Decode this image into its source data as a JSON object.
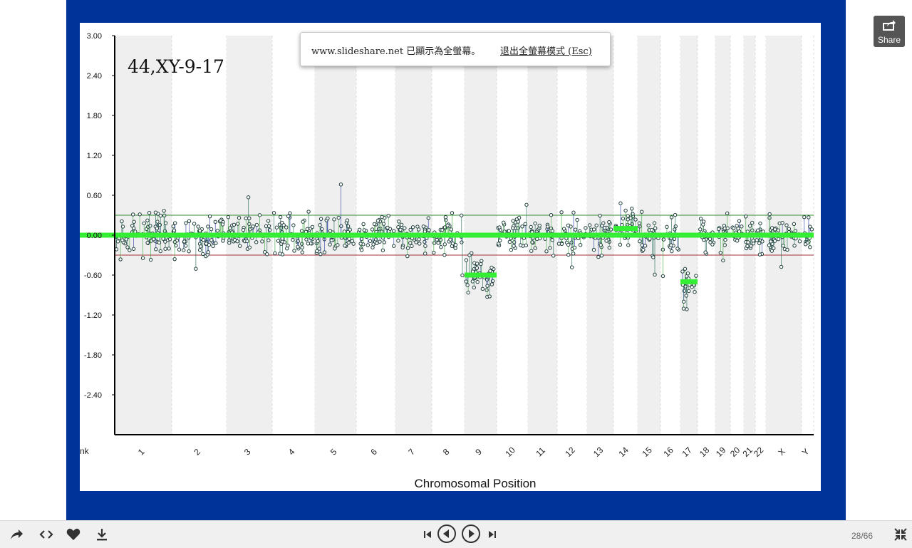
{
  "slide": {
    "current": 28,
    "total": 66,
    "counter_text": "28/66"
  },
  "fullscreen_notice": {
    "message": "www.slideshare.net 已顯示為全螢幕。",
    "exit_label": "退出全螢幕模式 (Esc)"
  },
  "share": {
    "label": "Share"
  },
  "toolbar": {
    "icons": [
      "share-icon",
      "embed-icon",
      "like-icon",
      "download-icon",
      "first-slide-icon",
      "prev-slide-icon",
      "next-slide-icon",
      "last-slide-icon",
      "exit-fullscreen-icon"
    ]
  },
  "colors": {
    "frame": "#003399",
    "trend": "#33ee33",
    "threshold_upper": "#2f8f2f",
    "threshold_lower": "#a03030",
    "band": "#efefef"
  },
  "chart_data": {
    "type": "scatter",
    "annotation": "44,XY-9-17",
    "xlabel": "Chromosomal Position",
    "ylabel": "",
    "ylim": [
      -3.0,
      3.0
    ],
    "yticks": [
      "3.00",
      "2.40",
      "1.80",
      "1.20",
      "0.60",
      "0.00",
      "-0.60",
      "-1.20",
      "-1.80",
      "-2.40"
    ],
    "thresholds": {
      "upper": 0.3,
      "lower": -0.3
    },
    "chromosomes": [
      "1",
      "2",
      "3",
      "4",
      "5",
      "6",
      "7",
      "8",
      "9",
      "10",
      "11",
      "12",
      "13",
      "14",
      "15",
      "16",
      "17",
      "18",
      "19",
      "20",
      "21",
      "22",
      "X",
      "Y",
      "Junk"
    ],
    "segments": [
      {
        "chr": "1",
        "mean": 0.0
      },
      {
        "chr": "2",
        "mean": 0.0
      },
      {
        "chr": "3",
        "mean": 0.0
      },
      {
        "chr": "4",
        "mean": 0.0
      },
      {
        "chr": "5",
        "mean": 0.0
      },
      {
        "chr": "6",
        "mean": 0.0
      },
      {
        "chr": "7",
        "mean": 0.0
      },
      {
        "chr": "8",
        "mean": 0.0
      },
      {
        "chr": "9",
        "mean": -0.6
      },
      {
        "chr": "10",
        "mean": 0.0
      },
      {
        "chr": "11",
        "mean": 0.0
      },
      {
        "chr": "12",
        "mean": 0.0
      },
      {
        "chr": "13",
        "mean": 0.0
      },
      {
        "chr": "14",
        "mean": 0.1
      },
      {
        "chr": "15",
        "mean": 0.0
      },
      {
        "chr": "16",
        "mean": 0.0
      },
      {
        "chr": "17",
        "mean": -0.7
      },
      {
        "chr": "18",
        "mean": 0.0
      },
      {
        "chr": "19",
        "mean": 0.0
      },
      {
        "chr": "20",
        "mean": 0.0
      },
      {
        "chr": "21",
        "mean": 0.0
      },
      {
        "chr": "22",
        "mean": 0.0
      },
      {
        "chr": "X",
        "mean": 0.0
      },
      {
        "chr": "Y",
        "mean": 0.0
      },
      {
        "chr": "Junk",
        "mean": 0.0
      }
    ],
    "grid": false,
    "legend": "none"
  }
}
